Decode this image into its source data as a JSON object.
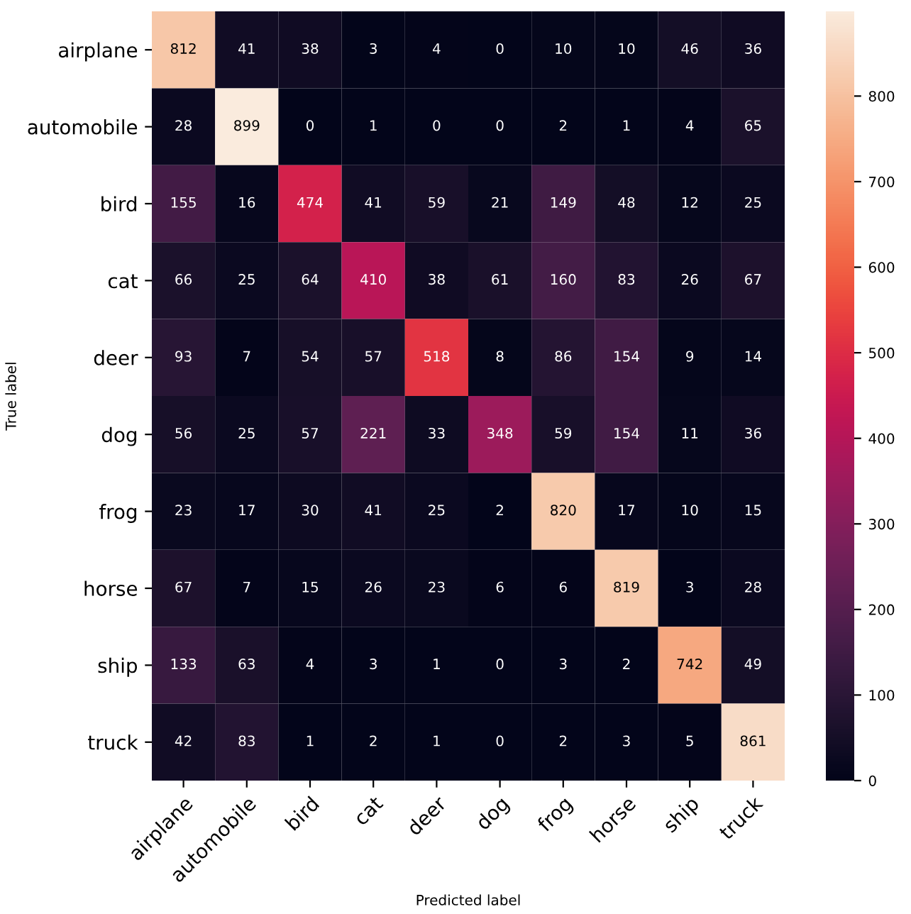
{
  "chart_data": {
    "type": "heatmap",
    "xlabel": "Predicted label",
    "ylabel": "True label",
    "categories": [
      "airplane",
      "automobile",
      "bird",
      "cat",
      "deer",
      "dog",
      "frog",
      "horse",
      "ship",
      "truck"
    ],
    "y_categories": [
      "airplane",
      "automobile",
      "bird",
      "cat",
      "deer",
      "dog",
      "frog",
      "horse",
      "ship",
      "truck"
    ],
    "cells": [
      [
        812,
        41,
        38,
        3,
        4,
        0,
        10,
        10,
        46,
        36
      ],
      [
        28,
        899,
        0,
        1,
        0,
        0,
        2,
        1,
        4,
        65
      ],
      [
        155,
        16,
        474,
        41,
        59,
        21,
        149,
        48,
        12,
        25
      ],
      [
        66,
        25,
        64,
        410,
        38,
        61,
        160,
        83,
        26,
        67
      ],
      [
        93,
        7,
        54,
        57,
        518,
        8,
        86,
        154,
        9,
        14
      ],
      [
        56,
        25,
        57,
        221,
        33,
        348,
        59,
        154,
        11,
        36
      ],
      [
        23,
        17,
        30,
        41,
        25,
        2,
        820,
        17,
        10,
        15
      ],
      [
        67,
        7,
        15,
        26,
        23,
        6,
        6,
        819,
        3,
        28
      ],
      [
        133,
        63,
        4,
        3,
        1,
        0,
        3,
        2,
        742,
        49
      ],
      [
        42,
        83,
        1,
        2,
        1,
        0,
        2,
        3,
        5,
        861
      ]
    ],
    "clim": [
      0,
      899
    ],
    "cticks": [
      0,
      100,
      200,
      300,
      400,
      500,
      600,
      700,
      800
    ],
    "data_labels": true
  }
}
